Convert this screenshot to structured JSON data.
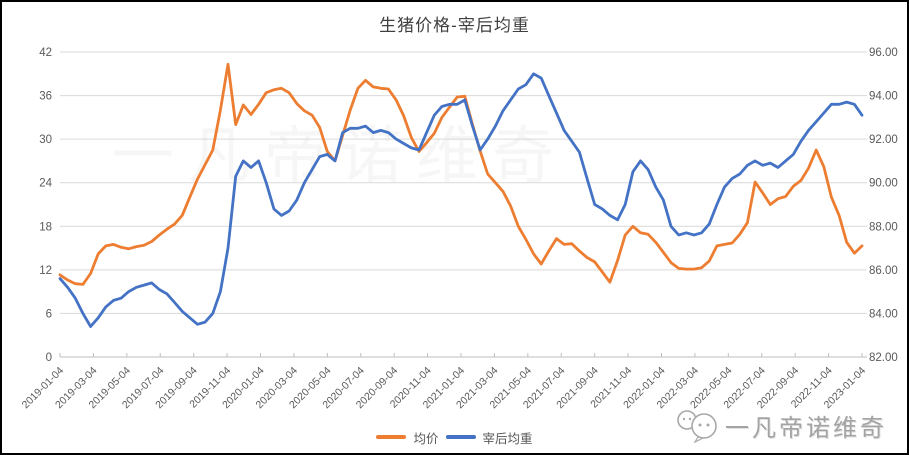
{
  "watermarks": {
    "center": "一凡帝诺维奇",
    "corner": "一凡帝诺维奇"
  },
  "colors": {
    "avg_price": "#ED7D31",
    "carcass_weight": "#4472C4",
    "grid": "#D9D9D9",
    "axis_line": "#BFBFBF",
    "tick_label": "#595959",
    "title": "#404040"
  },
  "chart_data": {
    "type": "line",
    "title": "生猪价格-宰后均重",
    "grid": true,
    "legend_position": "bottom",
    "x_start": "2019-01-04",
    "x_end": "2023-01-04",
    "x_tick_labels": [
      "2019-01-04",
      "2019-03-04",
      "2019-05-04",
      "2019-07-04",
      "2019-09-04",
      "2019-11-04",
      "2020-01-04",
      "2020-03-04",
      "2020-05-04",
      "2020-07-04",
      "2020-09-04",
      "2020-11-04",
      "2021-01-04",
      "2021-03-04",
      "2021-05-04",
      "2021-07-04",
      "2021-09-04",
      "2021-11-04",
      "2022-01-04",
      "2022-03-04",
      "2022-05-04",
      "2022-07-04",
      "2022-09-04",
      "2022-11-04",
      "2023-01-04"
    ],
    "left_axis": {
      "min": 0,
      "max": 42,
      "ticks": [
        0,
        6,
        12,
        18,
        24,
        30,
        36,
        42
      ]
    },
    "right_axis": {
      "min": 82,
      "max": 96,
      "tick_labels": [
        "82.00",
        "84.00",
        "86.00",
        "88.00",
        "90.00",
        "92.00",
        "94.00",
        "96.00"
      ]
    },
    "series": [
      {
        "name": "均价",
        "axis": "left",
        "color": "#ED7D31",
        "values": [
          11.3,
          10.6,
          10.1,
          10.0,
          11.5,
          14.2,
          15.3,
          15.5,
          15.1,
          14.9,
          15.2,
          15.4,
          15.9,
          16.8,
          17.6,
          18.3,
          19.5,
          22.0,
          24.5,
          26.5,
          28.5,
          34.0,
          40.3,
          32.0,
          34.7,
          33.4,
          34.8,
          36.4,
          36.8,
          37.0,
          36.4,
          34.9,
          33.9,
          33.3,
          31.6,
          28.3,
          27.0,
          30.5,
          34.0,
          37.0,
          38.1,
          37.2,
          37.0,
          36.9,
          35.4,
          33.2,
          30.2,
          28.3,
          29.5,
          30.8,
          33.0,
          34.4,
          35.8,
          35.9,
          32.0,
          28.4,
          25.2,
          24.0,
          22.8,
          20.8,
          18.0,
          16.2,
          14.2,
          12.8,
          14.6,
          16.3,
          15.5,
          15.6,
          14.6,
          13.7,
          13.1,
          11.7,
          10.3,
          13.3,
          16.8,
          18.0,
          17.1,
          16.9,
          15.8,
          14.4,
          13.0,
          12.2,
          12.1,
          12.1,
          12.3,
          13.2,
          15.3,
          15.5,
          15.7,
          16.9,
          18.5,
          24.1,
          22.6,
          21.0,
          21.8,
          22.1,
          23.5,
          24.3,
          26.0,
          28.5,
          26.2,
          22.0,
          19.5,
          15.8,
          14.3,
          15.3
        ]
      },
      {
        "name": "宰后均重",
        "axis": "right",
        "color": "#4472C4",
        "values": [
          85.6,
          85.2,
          84.7,
          84.0,
          83.4,
          83.8,
          84.3,
          84.6,
          84.7,
          85.0,
          85.2,
          85.3,
          85.4,
          85.1,
          84.9,
          84.5,
          84.1,
          83.8,
          83.5,
          83.6,
          84.0,
          85.0,
          87.0,
          90.3,
          91.0,
          90.7,
          91.0,
          90.0,
          88.8,
          88.5,
          88.7,
          89.2,
          90.0,
          90.6,
          91.2,
          91.3,
          91.0,
          92.3,
          92.5,
          92.5,
          92.6,
          92.3,
          92.4,
          92.3,
          92.0,
          91.8,
          91.6,
          91.5,
          92.3,
          93.1,
          93.5,
          93.6,
          93.6,
          93.8,
          92.6,
          91.5,
          92.0,
          92.6,
          93.3,
          93.8,
          94.3,
          94.5,
          95.0,
          94.8,
          94.0,
          93.2,
          92.4,
          91.9,
          91.4,
          90.2,
          89.0,
          88.8,
          88.5,
          88.3,
          89.0,
          90.5,
          91.0,
          90.6,
          89.8,
          89.2,
          88.0,
          87.6,
          87.7,
          87.6,
          87.7,
          88.1,
          89.0,
          89.8,
          90.2,
          90.4,
          90.8,
          91.0,
          90.8,
          90.9,
          90.7,
          91.0,
          91.3,
          91.9,
          92.4,
          92.8,
          93.2,
          93.6,
          93.6,
          93.7,
          93.6,
          93.1
        ]
      }
    ]
  }
}
